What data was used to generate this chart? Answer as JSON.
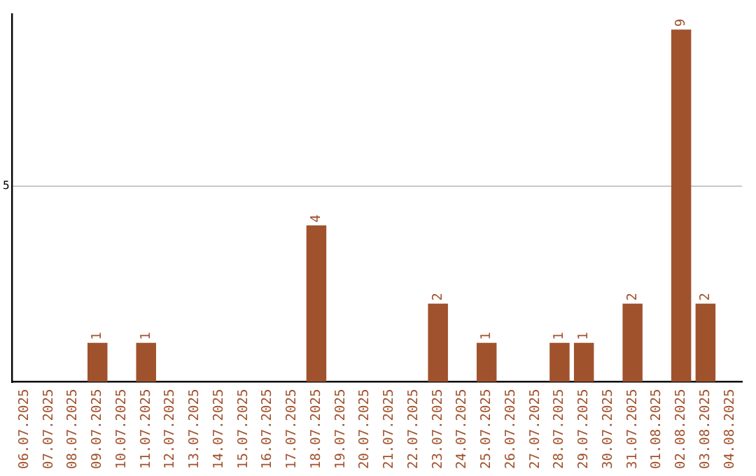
{
  "chart_data": {
    "type": "bar",
    "categories": [
      "06.07.2025",
      "07.07.2025",
      "08.07.2025",
      "09.07.2025",
      "10.07.2025",
      "11.07.2025",
      "12.07.2025",
      "13.07.2025",
      "14.07.2025",
      "15.07.2025",
      "16.07.2025",
      "17.07.2025",
      "18.07.2025",
      "19.07.2025",
      "20.07.2025",
      "21.07.2025",
      "22.07.2025",
      "23.07.2025",
      "24.07.2025",
      "25.07.2025",
      "26.07.2025",
      "27.07.2025",
      "28.07.2025",
      "29.07.2025",
      "30.07.2025",
      "31.07.2025",
      "01.08.2025",
      "02.08.2025",
      "03.08.2025",
      "04.08.2025"
    ],
    "values": [
      0,
      0,
      0,
      1,
      0,
      1,
      0,
      0,
      0,
      0,
      0,
      0,
      4,
      0,
      0,
      0,
      0,
      2,
      0,
      1,
      0,
      0,
      1,
      1,
      0,
      2,
      0,
      9,
      2,
      0
    ],
    "value_labels": [
      null,
      null,
      null,
      "1",
      null,
      "1",
      null,
      null,
      null,
      null,
      null,
      null,
      "4",
      null,
      null,
      null,
      null,
      "2",
      null,
      "1",
      null,
      null,
      "1",
      "1",
      null,
      "2",
      null,
      "9",
      "2",
      null
    ],
    "color": "#a0522d",
    "ylim": [
      0,
      9.4
    ],
    "yticks": [
      5
    ],
    "grid": "y",
    "legend": false
  }
}
